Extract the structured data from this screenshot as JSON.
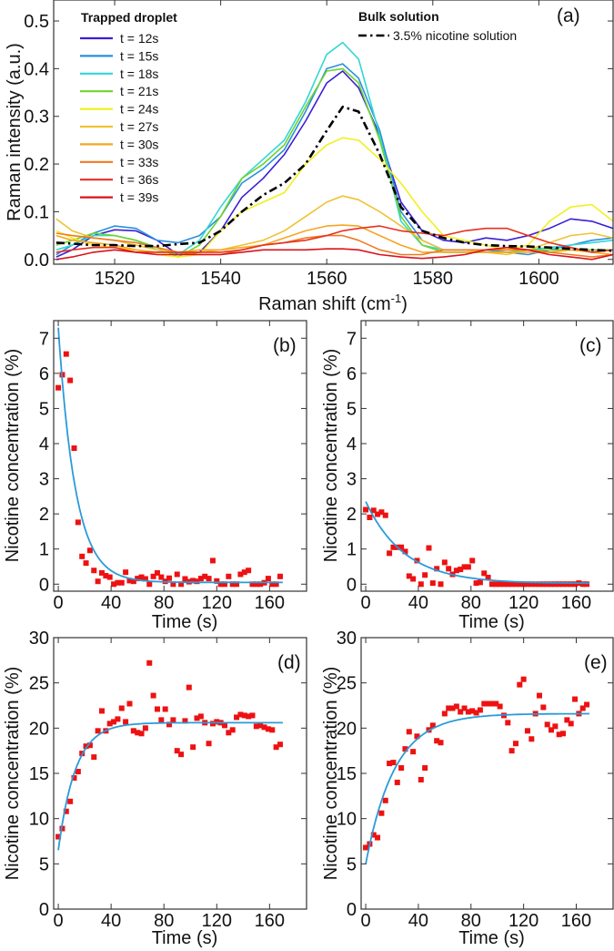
{
  "chart_data": [
    {
      "id": "a",
      "type": "line",
      "panel_label": "(a)",
      "xlabel": "Raman shift (cm",
      "xlabel_sup": "-1",
      "xlabel_end": ")",
      "ylabel": "Raman intensity (a.u.)",
      "xlim": [
        1508.5,
        1614
      ],
      "ylim": [
        -0.01,
        0.544
      ],
      "xticks": [
        1520,
        1540,
        1560,
        1580,
        1600
      ],
      "yticks": [
        "0.0",
        "0.1",
        "0.2",
        "0.3",
        "0.4",
        "0.5"
      ],
      "legend_title": "Trapped droplet",
      "legend2_title": "Bulk solution",
      "legend_placement": "top-left",
      "x": [
        1509,
        1512,
        1516,
        1520,
        1524,
        1528,
        1532,
        1536,
        1540,
        1544,
        1548,
        1552,
        1556,
        1560,
        1563,
        1566,
        1570,
        1574,
        1578,
        1582,
        1586,
        1590,
        1594,
        1598,
        1602,
        1606,
        1610,
        1614
      ],
      "series": [
        {
          "name": "t = 12s",
          "color": "#3a1fd4",
          "values": [
            0.005,
            0.02,
            0.05,
            0.062,
            0.06,
            0.04,
            0.01,
            0.015,
            0.06,
            0.13,
            0.17,
            0.22,
            0.29,
            0.37,
            0.395,
            0.36,
            0.26,
            0.12,
            0.06,
            0.04,
            0.035,
            0.045,
            0.04,
            0.05,
            0.065,
            0.085,
            0.08,
            0.065
          ]
        },
        {
          "name": "t = 15s",
          "color": "#2a8fe0",
          "values": [
            0.01,
            0.03,
            0.055,
            0.07,
            0.065,
            0.04,
            0.035,
            0.05,
            0.09,
            0.16,
            0.19,
            0.23,
            0.31,
            0.4,
            0.41,
            0.38,
            0.27,
            0.1,
            0.04,
            0.02,
            0.02,
            0.02,
            0.015,
            0.01,
            0.02,
            0.03,
            0.04,
            0.045
          ]
        },
        {
          "name": "t = 18s",
          "color": "#33d6d6",
          "values": [
            0.02,
            0.03,
            0.05,
            0.05,
            0.04,
            0.02,
            0.01,
            0.04,
            0.11,
            0.17,
            0.21,
            0.25,
            0.33,
            0.43,
            0.455,
            0.42,
            0.26,
            0.08,
            0.03,
            0.02,
            0.02,
            0.02,
            0.02,
            0.02,
            0.025,
            0.03,
            0.035,
            0.04
          ]
        },
        {
          "name": "t = 21s",
          "color": "#6fd42a",
          "values": [
            0.03,
            0.04,
            0.055,
            0.05,
            0.04,
            0.025,
            0.005,
            0.03,
            0.09,
            0.17,
            0.2,
            0.24,
            0.32,
            0.395,
            0.4,
            0.37,
            0.25,
            0.09,
            0.03,
            0.015,
            0.015,
            0.015,
            0.015,
            0.02,
            0.02,
            0.02,
            0.02,
            0.02
          ]
        },
        {
          "name": "t = 24s",
          "color": "#f2f020",
          "values": [
            0.06,
            0.045,
            0.03,
            0.025,
            0.02,
            0.01,
            0.005,
            0.01,
            0.06,
            0.1,
            0.12,
            0.14,
            0.2,
            0.24,
            0.255,
            0.25,
            0.21,
            0.16,
            0.1,
            0.05,
            0.04,
            0.03,
            0.02,
            0.03,
            0.08,
            0.11,
            0.115,
            0.08
          ]
        },
        {
          "name": "t = 27s",
          "color": "#f0c234",
          "values": [
            0.085,
            0.06,
            0.045,
            0.04,
            0.03,
            0.02,
            0.015,
            0.015,
            0.02,
            0.03,
            0.04,
            0.06,
            0.09,
            0.12,
            0.133,
            0.125,
            0.1,
            0.07,
            0.04,
            0.02,
            0.02,
            0.015,
            0.01,
            0.02,
            0.035,
            0.05,
            0.055,
            0.045
          ]
        },
        {
          "name": "t = 30s",
          "color": "#f5a623",
          "values": [
            0.05,
            0.04,
            0.035,
            0.03,
            0.02,
            0.015,
            0.015,
            0.02,
            0.02,
            0.025,
            0.03,
            0.045,
            0.06,
            0.07,
            0.072,
            0.07,
            0.05,
            0.03,
            0.015,
            0.015,
            0.015,
            0.015,
            0.015,
            0.015,
            0.015,
            0.02,
            0.015,
            0.01
          ]
        },
        {
          "name": "t = 33s",
          "color": "#f07a20",
          "values": [
            0.055,
            0.05,
            0.045,
            0.04,
            0.035,
            0.025,
            0.015,
            0.01,
            0.01,
            0.02,
            0.03,
            0.035,
            0.045,
            0.05,
            0.05,
            0.04,
            0.02,
            0.01,
            0.01,
            0.02,
            0.02,
            0.02,
            0.02,
            0.02,
            0.015,
            0.01,
            0.005,
            0.01
          ]
        },
        {
          "name": "t = 36s",
          "color": "#e83020",
          "values": [
            0.015,
            0.02,
            0.025,
            0.025,
            0.015,
            0.015,
            0.015,
            0.015,
            0.015,
            0.02,
            0.03,
            0.035,
            0.04,
            0.05,
            0.06,
            0.065,
            0.07,
            0.06,
            0.055,
            0.05,
            0.06,
            0.065,
            0.065,
            0.05,
            0.035,
            0.025,
            0.015,
            0.02
          ]
        },
        {
          "name": "t = 39s",
          "color": "#d8141c",
          "values": [
            0.0,
            0.005,
            0.015,
            0.02,
            0.015,
            0.01,
            0.01,
            0.01,
            0.01,
            0.015,
            0.02,
            0.02,
            0.02,
            0.022,
            0.022,
            0.02,
            0.01,
            0.005,
            0.002,
            0.005,
            0.01,
            0.02,
            0.025,
            0.02,
            0.01,
            0.005,
            0.0,
            0.01
          ]
        },
        {
          "name": "3.5% nicotine solution",
          "color": "#000000",
          "dash": true,
          "values": [
            0.035,
            0.033,
            0.03,
            0.03,
            0.028,
            0.028,
            0.032,
            0.035,
            0.06,
            0.1,
            0.135,
            0.16,
            0.2,
            0.27,
            0.32,
            0.31,
            0.22,
            0.11,
            0.06,
            0.045,
            0.035,
            0.03,
            0.028,
            0.027,
            0.025,
            0.022,
            0.02,
            0.018
          ]
        }
      ]
    },
    {
      "id": "b",
      "type": "scatter",
      "panel_label": "(b)",
      "xlabel": "Time (s)",
      "ylabel": "Nicotine concentration (%)",
      "xlim": [
        -3.5,
        188
      ],
      "ylim": [
        -0.2,
        7.5
      ],
      "xticks": [
        0,
        40,
        80,
        120,
        160
      ],
      "yticks": [
        0,
        1,
        2,
        3,
        4,
        5,
        6,
        7
      ],
      "point_color": "#ee1111",
      "fit_color": "#2a9bd8",
      "x_step": 3,
      "values": [
        5.59,
        5.96,
        6.55,
        5.8,
        3.87,
        1.76,
        0.79,
        0.6,
        0.96,
        0.39,
        0.08,
        0.32,
        0.24,
        0.2,
        0,
        0.04,
        0.04,
        0.34,
        0.1,
        0.08,
        0.16,
        0.2,
        0.15,
        0,
        0.22,
        0.32,
        0.2,
        0.08,
        0.17,
        0,
        0.28,
        0,
        0.15,
        0.07,
        0.1,
        0.08,
        0.16,
        0.22,
        0.16,
        0.67,
        0.09,
        0,
        0,
        0.22,
        0,
        0,
        0.28,
        0.34,
        0.39,
        0,
        0,
        0,
        0.04,
        0.16,
        0,
        0,
        0.22
      ],
      "fit": {
        "model": "exp_decay",
        "y0": 0.05,
        "A": 7.25,
        "tau": 13,
        "t_range": [
          0,
          170
        ]
      }
    },
    {
      "id": "c",
      "type": "scatter",
      "panel_label": "(c)",
      "xlabel": "Time (s)",
      "ylabel": "Nicotine concentration (%)",
      "xlim": [
        -3.5,
        188
      ],
      "ylim": [
        -0.2,
        7.5
      ],
      "xticks": [
        0,
        40,
        80,
        120,
        160
      ],
      "yticks": [
        0,
        1,
        2,
        3,
        4,
        5,
        6,
        7
      ],
      "point_color": "#ee1111",
      "fit_color": "#2a9bd8",
      "x_step": 3,
      "values": [
        2.12,
        1.9,
        2.1,
        1.99,
        2.05,
        1.96,
        0.88,
        1.05,
        1.05,
        1.05,
        0.93,
        0.23,
        0.15,
        0.67,
        0,
        0.26,
        1.03,
        0.03,
        0.44,
        0,
        0.62,
        0.44,
        0.28,
        0.39,
        0.42,
        0.49,
        0.49,
        0.67,
        0.03,
        0.05,
        0.31,
        0.19,
        0,
        0,
        0,
        0,
        0,
        0,
        0,
        0,
        0,
        0,
        0,
        0,
        0,
        0,
        0,
        0,
        0,
        0,
        0,
        0,
        0,
        0,
        0.03,
        0,
        0
      ],
      "fit": {
        "model": "exp_decay",
        "y0": 0.02,
        "A": 2.33,
        "tau": 29.5,
        "t_range": [
          0,
          170
        ]
      }
    },
    {
      "id": "d",
      "type": "scatter",
      "panel_label": "(d)",
      "xlabel": "Time (s)",
      "ylabel": "Nicotine concentration (%)",
      "xlim": [
        -3.5,
        188
      ],
      "ylim": [
        0,
        30
      ],
      "xticks": [
        0,
        40,
        80,
        120,
        160
      ],
      "yticks": [
        0,
        5,
        10,
        15,
        20,
        25,
        30
      ],
      "point_color": "#ee1111",
      "fit_color": "#2a9bd8",
      "x_step": 3,
      "values": [
        8.0,
        8.9,
        10.8,
        11.9,
        14.5,
        15.2,
        17.2,
        18.0,
        18.1,
        16.8,
        19.7,
        21.9,
        19.7,
        20.5,
        20.7,
        21.0,
        22.2,
        20.7,
        22.7,
        19.7,
        19.5,
        19.4,
        20.0,
        27.2,
        23.6,
        22.1,
        20.9,
        22.1,
        20.4,
        20.9,
        17.5,
        17.1,
        20.8,
        24.5,
        17.9,
        21.1,
        21.3,
        20.6,
        18.3,
        20.5,
        20.7,
        20.6,
        20.3,
        19.5,
        19.8,
        21.2,
        21.5,
        21.4,
        21.3,
        21.4,
        20.2,
        20.3,
        20.1,
        19.9,
        19.8,
        17.9,
        18.2
      ],
      "fit": {
        "model": "exp_rise",
        "y0": 20.6,
        "A": 14.1,
        "tau": 13,
        "t_range": [
          0,
          170
        ]
      }
    },
    {
      "id": "e",
      "type": "scatter",
      "panel_label": "(e)",
      "xlabel": "Time (s)",
      "ylabel": "Nicotine concentration (%)",
      "xlim": [
        -3.5,
        188
      ],
      "ylim": [
        0,
        30
      ],
      "xticks": [
        0,
        40,
        80,
        120,
        160
      ],
      "yticks": [
        0,
        5,
        10,
        15,
        20,
        25,
        30
      ],
      "point_color": "#ee1111",
      "fit_color": "#2a9bd8",
      "x_step": 3,
      "values": [
        6.8,
        7.2,
        8.2,
        7.9,
        10.6,
        12.0,
        16.1,
        16.2,
        14.0,
        15.6,
        17.7,
        19.6,
        17.4,
        19.1,
        14.3,
        15.6,
        19.8,
        20.3,
        18.6,
        18.4,
        21.6,
        22.2,
        22.2,
        22.4,
        21.8,
        22.2,
        21.8,
        21.9,
        21.7,
        22.0,
        22.7,
        22.7,
        22.7,
        22.7,
        22.4,
        21.4,
        20.6,
        17.5,
        18.3,
        24.8,
        25.4,
        19.7,
        18.8,
        21.6,
        23.6,
        22.3,
        20.4,
        19.8,
        20.2,
        19.3,
        19.4,
        20.9,
        20.5,
        23.2,
        21.6,
        22.2,
        22.6
      ],
      "fit": {
        "model": "exp_rise",
        "y0": 21.6,
        "A": 16.6,
        "tau": 22,
        "t_range": [
          0,
          170
        ]
      }
    }
  ]
}
